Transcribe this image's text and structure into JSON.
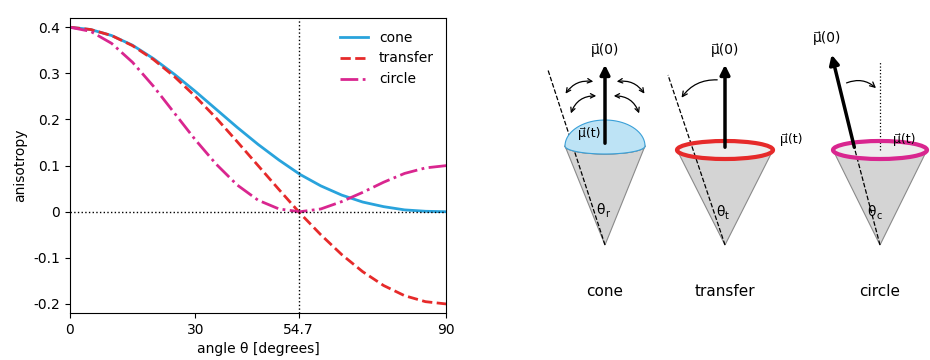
{
  "chart_data": {
    "type": "line",
    "xlabel": "angle θ [degrees]",
    "ylabel": "anisotropy",
    "x": [
      0,
      5,
      10,
      15,
      20,
      25,
      30,
      35,
      40,
      45,
      50,
      55,
      60,
      65,
      70,
      75,
      80,
      85,
      90
    ],
    "series": [
      {
        "name": "cone",
        "color": "#29a3dc",
        "line_style": "solid",
        "values": [
          0.4,
          0.395,
          0.382,
          0.361,
          0.332,
          0.298,
          0.261,
          0.222,
          0.183,
          0.146,
          0.112,
          0.081,
          0.056,
          0.036,
          0.021,
          0.011,
          0.004,
          0.001,
          0.0
        ]
      },
      {
        "name": "transfer",
        "color": "#e62a2a",
        "line_style": "dashed",
        "values": [
          0.4,
          0.395,
          0.382,
          0.36,
          0.33,
          0.293,
          0.25,
          0.203,
          0.152,
          0.1,
          0.048,
          -0.003,
          -0.05,
          -0.093,
          -0.13,
          -0.16,
          -0.182,
          -0.195,
          -0.2
        ]
      },
      {
        "name": "circle",
        "color": "#d9268f",
        "line_style": "dashdot",
        "values": [
          0.4,
          0.391,
          0.365,
          0.324,
          0.272,
          0.214,
          0.156,
          0.103,
          0.058,
          0.025,
          0.006,
          0.0,
          0.006,
          0.022,
          0.042,
          0.064,
          0.083,
          0.095,
          0.1
        ]
      }
    ],
    "xlim": [
      0,
      90
    ],
    "ylim": [
      -0.22,
      0.42
    ],
    "xticks": [
      0,
      30,
      54.7,
      90
    ],
    "yticks": [
      -0.2,
      -0.1,
      0,
      0.1,
      0.2,
      0.3,
      0.4
    ],
    "vlines": [
      54.7
    ],
    "hlines": [
      0
    ],
    "legend": "upper right"
  },
  "diagram": {
    "panels": [
      {
        "label": "cone",
        "vector_0": "μ⃗(0)",
        "vector_t": "μ⃗(t)",
        "angle": {
          "symbol": "θ",
          "subscript": "r"
        }
      },
      {
        "label": "transfer",
        "vector_0": "μ⃗(0)",
        "vector_t": "μ⃗(t)",
        "angle": {
          "symbol": "θ",
          "subscript": "t"
        }
      },
      {
        "label": "circle",
        "vector_0": "μ⃗(0)",
        "vector_t": "μ⃗(t)",
        "angle": {
          "symbol": "θ",
          "subscript": "c"
        }
      }
    ]
  }
}
